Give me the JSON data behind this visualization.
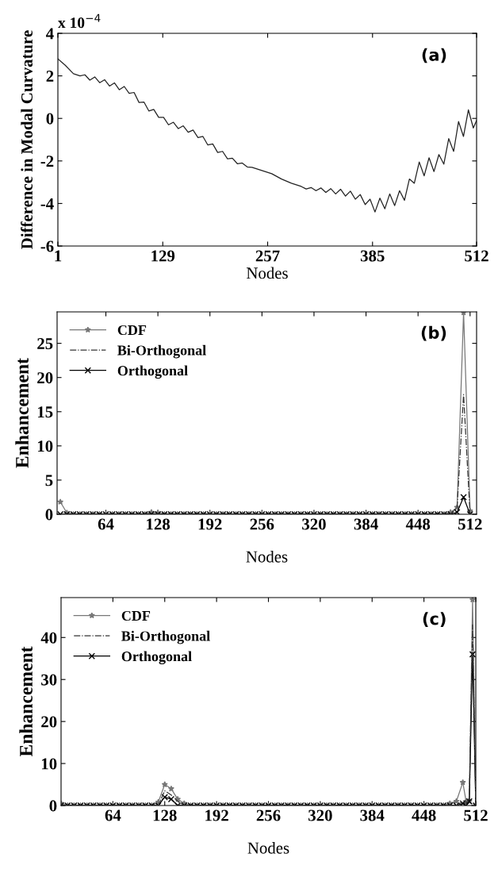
{
  "chart_data": [
    {
      "type": "line",
      "xlabel": "Nodes",
      "ylabel": "Difference in Modal Curvature",
      "annotations": [
        "x 10$^{−4}$",
        "(a)"
      ],
      "xlim": [
        1,
        512
      ],
      "ylim": [
        -6,
        4
      ],
      "xticks": [
        1,
        129,
        257,
        385,
        512
      ],
      "yticks": [
        -6,
        -4,
        -2,
        0,
        2,
        4
      ],
      "grid": false,
      "legend": false,
      "series": [
        {
          "color": "#222222",
          "marker": "none",
          "line_style": "solid",
          "x": [
            1,
            10,
            20,
            28,
            34,
            40,
            46,
            52,
            58,
            64,
            70,
            76,
            82,
            88,
            94,
            100,
            106,
            112,
            118,
            124,
            130,
            136,
            142,
            148,
            154,
            160,
            166,
            172,
            178,
            184,
            190,
            196,
            202,
            208,
            214,
            220,
            226,
            232,
            238,
            250,
            262,
            274,
            286,
            298,
            304,
            310,
            316,
            322,
            328,
            334,
            340,
            346,
            352,
            358,
            364,
            370,
            376,
            382,
            388,
            394,
            400,
            406,
            412,
            418,
            424,
            430,
            436,
            442,
            448,
            454,
            460,
            466,
            472,
            478,
            484,
            490,
            496,
            502,
            508,
            512
          ],
          "values": [
            2.8,
            2.5,
            2.1,
            2.0,
            2.05,
            1.8,
            1.95,
            1.68,
            1.82,
            1.52,
            1.67,
            1.35,
            1.5,
            1.18,
            1.22,
            0.75,
            0.77,
            0.35,
            0.42,
            0.05,
            0.05,
            -0.3,
            -0.18,
            -0.48,
            -0.35,
            -0.65,
            -0.55,
            -0.9,
            -0.85,
            -1.25,
            -1.2,
            -1.6,
            -1.55,
            -1.9,
            -1.87,
            -2.13,
            -2.1,
            -2.28,
            -2.3,
            -2.45,
            -2.6,
            -2.85,
            -3.05,
            -3.2,
            -3.32,
            -3.25,
            -3.4,
            -3.27,
            -3.48,
            -3.3,
            -3.55,
            -3.33,
            -3.65,
            -3.42,
            -3.8,
            -3.58,
            -4.05,
            -3.8,
            -4.4,
            -3.75,
            -4.25,
            -3.55,
            -4.1,
            -3.4,
            -3.85,
            -2.85,
            -3.05,
            -2.05,
            -2.7,
            -1.85,
            -2.5,
            -1.7,
            -2.15,
            -0.95,
            -1.55,
            -0.15,
            -0.85,
            0.4,
            -0.45,
            -0.1
          ]
        }
      ]
    },
    {
      "type": "line",
      "xlabel": "Nodes",
      "ylabel": "Enhancement",
      "annotations": [
        "(b)"
      ],
      "xlim": [
        4,
        520
      ],
      "ylim": [
        0,
        29.6
      ],
      "xticks": [
        64,
        128,
        192,
        256,
        320,
        384,
        448,
        512
      ],
      "yticks": [
        0,
        5,
        10,
        15,
        20,
        25
      ],
      "grid": false,
      "legend": "top left",
      "x": [
        8,
        16,
        24,
        32,
        40,
        48,
        56,
        64,
        72,
        80,
        88,
        96,
        104,
        112,
        120,
        128,
        136,
        144,
        152,
        160,
        168,
        176,
        184,
        192,
        200,
        208,
        216,
        224,
        232,
        240,
        248,
        256,
        264,
        272,
        280,
        288,
        296,
        304,
        312,
        320,
        328,
        336,
        344,
        352,
        360,
        368,
        376,
        384,
        392,
        400,
        408,
        416,
        424,
        432,
        440,
        448,
        456,
        464,
        472,
        480,
        488,
        496,
        504,
        512
      ],
      "series": [
        {
          "name": "CDF",
          "color": "#777777",
          "marker": "star",
          "line_style": "solid",
          "values": [
            1.8,
            0.2,
            0,
            0,
            0,
            0,
            0,
            0,
            0,
            0,
            0,
            0,
            0,
            0,
            0.3,
            0.2,
            0,
            0,
            0,
            0,
            0,
            0,
            0,
            0,
            0,
            0,
            0,
            0,
            0,
            0,
            0,
            0,
            0,
            0,
            0,
            0,
            0,
            0,
            0,
            0,
            0,
            0,
            0,
            0,
            0,
            0,
            0,
            0,
            0,
            0,
            0,
            0,
            0,
            0,
            0,
            0,
            0,
            0,
            0,
            0,
            0.3,
            1.0,
            29.5,
            0.5
          ]
        },
        {
          "name": "Bi-Orthogonal",
          "color": "#333333",
          "marker": "none",
          "line_style": "dashdot",
          "values": [
            0,
            0,
            0,
            0,
            0,
            0,
            0,
            0,
            0,
            0,
            0,
            0,
            0,
            0,
            0,
            0,
            0,
            0,
            0,
            0,
            0,
            0,
            0,
            0,
            0,
            0,
            0,
            0,
            0,
            0,
            0,
            0,
            0,
            0,
            0,
            0,
            0,
            0,
            0,
            0,
            0,
            0,
            0,
            0,
            0,
            0,
            0,
            0,
            0,
            0,
            0,
            0,
            0,
            0,
            0,
            0,
            0,
            0,
            0,
            0,
            0,
            1.0,
            17.5,
            0
          ]
        },
        {
          "name": "Orthogonal",
          "color": "#000000",
          "marker": "cross",
          "line_style": "solid",
          "values": [
            0,
            0,
            0,
            0,
            0,
            0,
            0,
            0,
            0,
            0,
            0,
            0,
            0,
            0,
            0,
            0,
            0,
            0,
            0,
            0,
            0,
            0,
            0,
            0,
            0,
            0,
            0,
            0,
            0,
            0,
            0,
            0,
            0,
            0,
            0,
            0,
            0,
            0,
            0,
            0,
            0,
            0,
            0,
            0,
            0,
            0,
            0,
            0,
            0,
            0,
            0,
            0,
            0,
            0,
            0,
            0,
            0,
            0,
            0,
            0,
            0,
            0.3,
            2.5,
            0
          ]
        }
      ]
    },
    {
      "type": "line",
      "xlabel": "Nodes",
      "ylabel": "Enhancement",
      "annotations": [
        "(c)"
      ],
      "xlim": [
        0,
        512
      ],
      "ylim": [
        0,
        49.5
      ],
      "xticks": [
        64,
        128,
        192,
        256,
        320,
        384,
        448,
        512
      ],
      "yticks": [
        0,
        10,
        20,
        30,
        40
      ],
      "grid": false,
      "legend": "top left",
      "x": [
        0,
        8,
        16,
        24,
        32,
        40,
        48,
        56,
        64,
        72,
        80,
        88,
        96,
        104,
        112,
        120,
        128,
        136,
        144,
        152,
        160,
        168,
        176,
        184,
        192,
        200,
        208,
        216,
        224,
        232,
        240,
        248,
        256,
        264,
        272,
        280,
        288,
        296,
        304,
        312,
        320,
        328,
        336,
        344,
        352,
        360,
        368,
        376,
        384,
        392,
        400,
        408,
        416,
        424,
        432,
        440,
        448,
        456,
        464,
        472,
        480,
        488,
        496,
        500,
        504,
        508,
        512
      ],
      "series": [
        {
          "name": "CDF",
          "color": "#777777",
          "marker": "star",
          "line_style": "solid",
          "values": [
            0.5,
            0,
            0,
            0,
            0,
            0,
            0,
            0,
            0,
            0,
            0,
            0,
            0,
            0,
            0,
            0.8,
            5,
            4,
            1.5,
            0.5,
            0,
            0,
            0,
            0,
            0,
            0,
            0,
            0,
            0,
            0,
            0,
            0,
            0,
            0,
            0,
            0,
            0,
            0,
            0,
            0,
            0,
            0,
            0,
            0,
            0,
            0,
            0,
            0,
            0,
            0,
            0,
            0,
            0,
            0,
            0,
            0,
            0,
            0,
            0,
            0,
            0.5,
            1.0,
            5.5,
            1,
            1,
            49,
            0
          ]
        },
        {
          "name": "Bi-Orthogonal",
          "color": "#333333",
          "marker": "none",
          "line_style": "dashdot",
          "values": [
            0,
            0,
            0,
            0,
            0,
            0,
            0,
            0,
            0,
            0,
            0,
            0,
            0,
            0,
            0,
            0,
            3.5,
            2.5,
            1.0,
            0,
            0,
            0,
            0,
            0,
            0,
            0,
            0,
            0,
            0,
            0,
            0,
            0,
            0,
            0,
            0,
            0,
            0,
            0,
            0,
            0,
            0,
            0,
            0,
            0,
            0,
            0,
            0,
            0,
            0,
            0,
            0,
            0,
            0,
            0,
            0,
            0,
            0,
            0,
            0,
            0,
            0,
            0,
            1.0,
            0.5,
            2,
            43,
            0
          ]
        },
        {
          "name": "Orthogonal",
          "color": "#000000",
          "marker": "cross",
          "line_style": "solid",
          "values": [
            0,
            0,
            0,
            0,
            0,
            0,
            0,
            0,
            0,
            0,
            0,
            0,
            0,
            0,
            0,
            0,
            2,
            1.5,
            0,
            0,
            0,
            0,
            0,
            0,
            0,
            0,
            0,
            0,
            0,
            0,
            0,
            0,
            0,
            0,
            0,
            0,
            0,
            0,
            0,
            0,
            0,
            0,
            0,
            0,
            0,
            0,
            0,
            0,
            0,
            0,
            0,
            0,
            0,
            0,
            0,
            0,
            0,
            0,
            0,
            0,
            0,
            0,
            0.5,
            0,
            1,
            36,
            0
          ]
        }
      ]
    }
  ]
}
